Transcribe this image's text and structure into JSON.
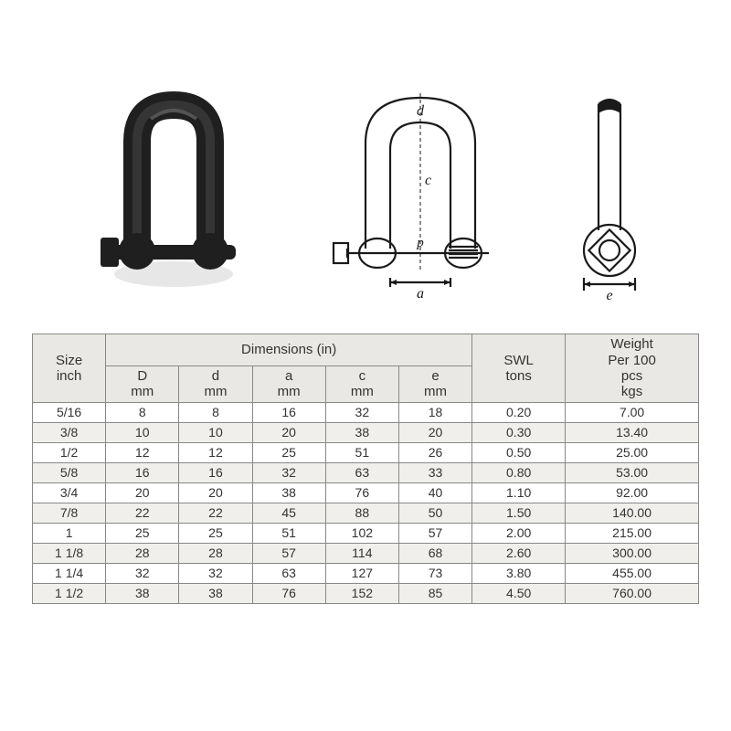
{
  "table": {
    "header": {
      "size_l1": "Size",
      "size_l2": "inch",
      "dims_title": "Dimensions (in)",
      "D_l1": "D",
      "D_l2": "mm",
      "d_l1": "d",
      "d_l2": "mm",
      "a_l1": "a",
      "a_l2": "mm",
      "c_l1": "c",
      "c_l2": "mm",
      "e_l1": "e",
      "e_l2": "mm",
      "swl_l1": "SWL",
      "swl_l2": "tons",
      "wt_l1": "Weight",
      "wt_l2": "Per 100",
      "wt_l3": "pcs",
      "wt_l4": "kgs"
    },
    "columns": [
      "size",
      "D",
      "d",
      "a",
      "c",
      "e",
      "swl",
      "weight"
    ],
    "rows": [
      {
        "size": "5/16",
        "D": "8",
        "d": "8",
        "a": "16",
        "c": "32",
        "e": "18",
        "swl": "0.20",
        "weight": "7.00",
        "band": false
      },
      {
        "size": "3/8",
        "D": "10",
        "d": "10",
        "a": "20",
        "c": "38",
        "e": "20",
        "swl": "0.30",
        "weight": "13.40",
        "band": true
      },
      {
        "size": "1/2",
        "D": "12",
        "d": "12",
        "a": "25",
        "c": "51",
        "e": "26",
        "swl": "0.50",
        "weight": "25.00",
        "band": false
      },
      {
        "size": "5/8",
        "D": "16",
        "d": "16",
        "a": "32",
        "c": "63",
        "e": "33",
        "swl": "0.80",
        "weight": "53.00",
        "band": true
      },
      {
        "size": "3/4",
        "D": "20",
        "d": "20",
        "a": "38",
        "c": "76",
        "e": "40",
        "swl": "1.10",
        "weight": "92.00",
        "band": false
      },
      {
        "size": "7/8",
        "D": "22",
        "d": "22",
        "a": "45",
        "c": "88",
        "e": "50",
        "swl": "1.50",
        "weight": "140.00",
        "band": true
      },
      {
        "size": "1",
        "D": "25",
        "d": "25",
        "a": "51",
        "c": "102",
        "e": "57",
        "swl": "2.00",
        "weight": "215.00",
        "band": false
      },
      {
        "size": "1 1/8",
        "D": "28",
        "d": "28",
        "a": "57",
        "c": "114",
        "e": "68",
        "swl": "2.60",
        "weight": "300.00",
        "band": true
      },
      {
        "size": "1 1/4",
        "D": "32",
        "d": "32",
        "a": "63",
        "c": "127",
        "e": "73",
        "swl": "3.80",
        "weight": "455.00",
        "band": false
      },
      {
        "size": "1 1/2",
        "D": "38",
        "d": "38",
        "a": "76",
        "c": "152",
        "e": "85",
        "swl": "4.50",
        "weight": "760.00",
        "band": true
      }
    ],
    "styling": {
      "border_color": "#888888",
      "header_bg": "#e9e8e4",
      "band_bg": "#f0efeb",
      "text_color": "#333333",
      "font_size_body": 14,
      "font_size_header": 15
    }
  },
  "diagram": {
    "labels": {
      "d_top": "d",
      "c_mid": "c",
      "p_pin": "p",
      "a_bottom": "a",
      "e_side": "e"
    },
    "colors": {
      "stroke": "#1a1a1a",
      "photo_body": "#222222",
      "photo_shadow": "#555555",
      "label_font": "italic 16px serif"
    }
  }
}
